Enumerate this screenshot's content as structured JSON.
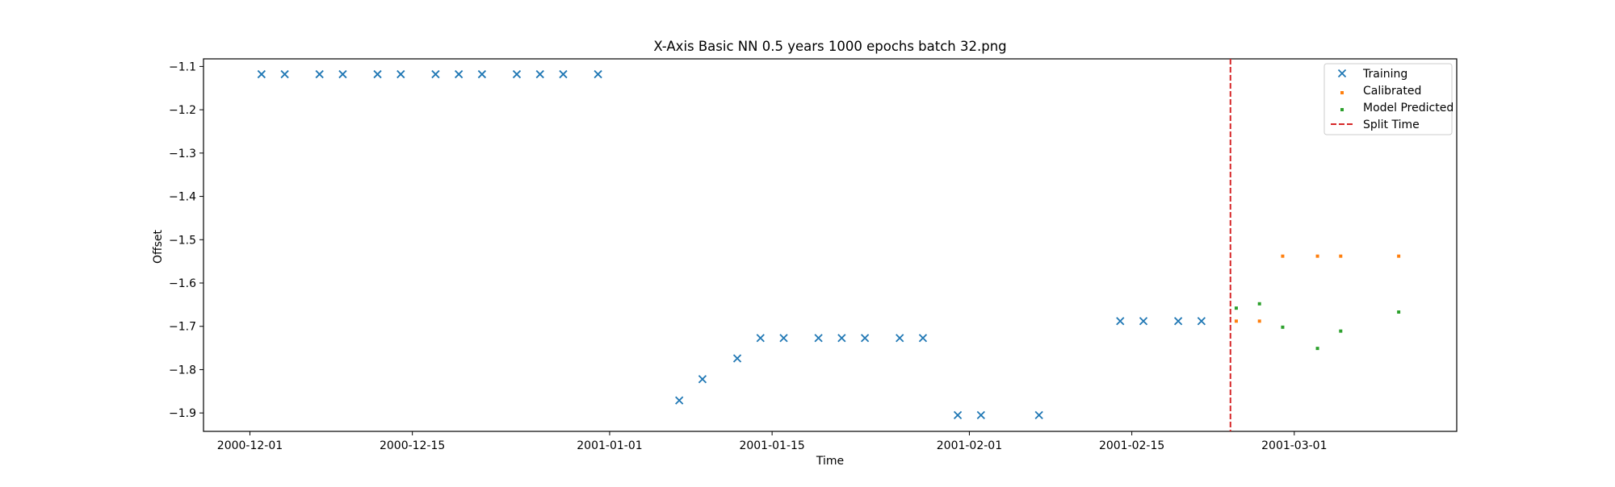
{
  "chart_data": {
    "type": "scatter",
    "title": "X-Axis Basic NN 0.5 years 1000 epochs batch 32.png",
    "xlabel": "Time",
    "ylabel": "Offset",
    "x_type": "date",
    "xlim": [
      "2000-11-27",
      "2001-03-15"
    ],
    "ylim": [
      -1.9425,
      -1.0825
    ],
    "x_ticks": [
      {
        "value": "2000-12-01",
        "label": "2000-12-01"
      },
      {
        "value": "2000-12-15",
        "label": "2000-12-15"
      },
      {
        "value": "2001-01-01",
        "label": "2001-01-01"
      },
      {
        "value": "2001-01-15",
        "label": "2001-01-15"
      },
      {
        "value": "2001-02-01",
        "label": "2001-02-01"
      },
      {
        "value": "2001-02-15",
        "label": "2001-02-15"
      },
      {
        "value": "2001-03-01",
        "label": "2001-03-01"
      }
    ],
    "y_ticks": [
      {
        "value": -1.1,
        "label": "−1.1"
      },
      {
        "value": -1.2,
        "label": "−1.2"
      },
      {
        "value": -1.3,
        "label": "−1.3"
      },
      {
        "value": -1.4,
        "label": "−1.4"
      },
      {
        "value": -1.5,
        "label": "−1.5"
      },
      {
        "value": -1.6,
        "label": "−1.6"
      },
      {
        "value": -1.7,
        "label": "−1.7"
      },
      {
        "value": -1.8,
        "label": "−1.8"
      },
      {
        "value": -1.9,
        "label": "−1.9"
      }
    ],
    "grid": false,
    "legend_position": "top-right",
    "series": [
      {
        "name": "Training",
        "marker": "x",
        "color": "#1f77b4",
        "points": [
          {
            "x": "2000-12-02",
            "y": -1.118
          },
          {
            "x": "2000-12-04",
            "y": -1.118
          },
          {
            "x": "2000-12-07",
            "y": -1.118
          },
          {
            "x": "2000-12-09",
            "y": -1.118
          },
          {
            "x": "2000-12-12",
            "y": -1.118
          },
          {
            "x": "2000-12-14",
            "y": -1.118
          },
          {
            "x": "2000-12-17",
            "y": -1.118
          },
          {
            "x": "2000-12-19",
            "y": -1.118
          },
          {
            "x": "2000-12-21",
            "y": -1.118
          },
          {
            "x": "2000-12-24",
            "y": -1.118
          },
          {
            "x": "2000-12-26",
            "y": -1.118
          },
          {
            "x": "2000-12-28",
            "y": -1.118
          },
          {
            "x": "2000-12-31",
            "y": -1.118
          },
          {
            "x": "2001-01-07",
            "y": -1.871
          },
          {
            "x": "2001-01-09",
            "y": -1.822
          },
          {
            "x": "2001-01-12",
            "y": -1.774
          },
          {
            "x": "2001-01-14",
            "y": -1.727
          },
          {
            "x": "2001-01-16",
            "y": -1.727
          },
          {
            "x": "2001-01-19",
            "y": -1.727
          },
          {
            "x": "2001-01-21",
            "y": -1.727
          },
          {
            "x": "2001-01-23",
            "y": -1.727
          },
          {
            "x": "2001-01-26",
            "y": -1.727
          },
          {
            "x": "2001-01-28",
            "y": -1.727
          },
          {
            "x": "2001-01-31",
            "y": -1.905
          },
          {
            "x": "2001-02-02",
            "y": -1.905
          },
          {
            "x": "2001-02-07",
            "y": -1.905
          },
          {
            "x": "2001-02-14",
            "y": -1.688
          },
          {
            "x": "2001-02-16",
            "y": -1.688
          },
          {
            "x": "2001-02-19",
            "y": -1.688
          },
          {
            "x": "2001-02-21",
            "y": -1.688
          }
        ]
      },
      {
        "name": "Calibrated",
        "marker": "dot",
        "color": "#ff7f0e",
        "points": [
          {
            "x": "2001-02-24",
            "y": -1.688
          },
          {
            "x": "2001-02-26",
            "y": -1.688
          },
          {
            "x": "2001-02-28",
            "y": -1.538
          },
          {
            "x": "2001-03-03",
            "y": -1.538
          },
          {
            "x": "2001-03-05",
            "y": -1.538
          },
          {
            "x": "2001-03-10",
            "y": -1.538
          }
        ]
      },
      {
        "name": "Model Predicted",
        "marker": "dot",
        "color": "#2ca02c",
        "points": [
          {
            "x": "2001-02-24",
            "y": -1.658
          },
          {
            "x": "2001-02-26",
            "y": -1.648
          },
          {
            "x": "2001-02-28",
            "y": -1.702
          },
          {
            "x": "2001-03-03",
            "y": -1.751
          },
          {
            "x": "2001-03-05",
            "y": -1.711
          },
          {
            "x": "2001-03-10",
            "y": -1.667
          }
        ]
      }
    ],
    "vlines": [
      {
        "name": "Split Time",
        "x": "2001-02-23 12:00",
        "color": "#d62728",
        "style": "dashed"
      }
    ]
  }
}
